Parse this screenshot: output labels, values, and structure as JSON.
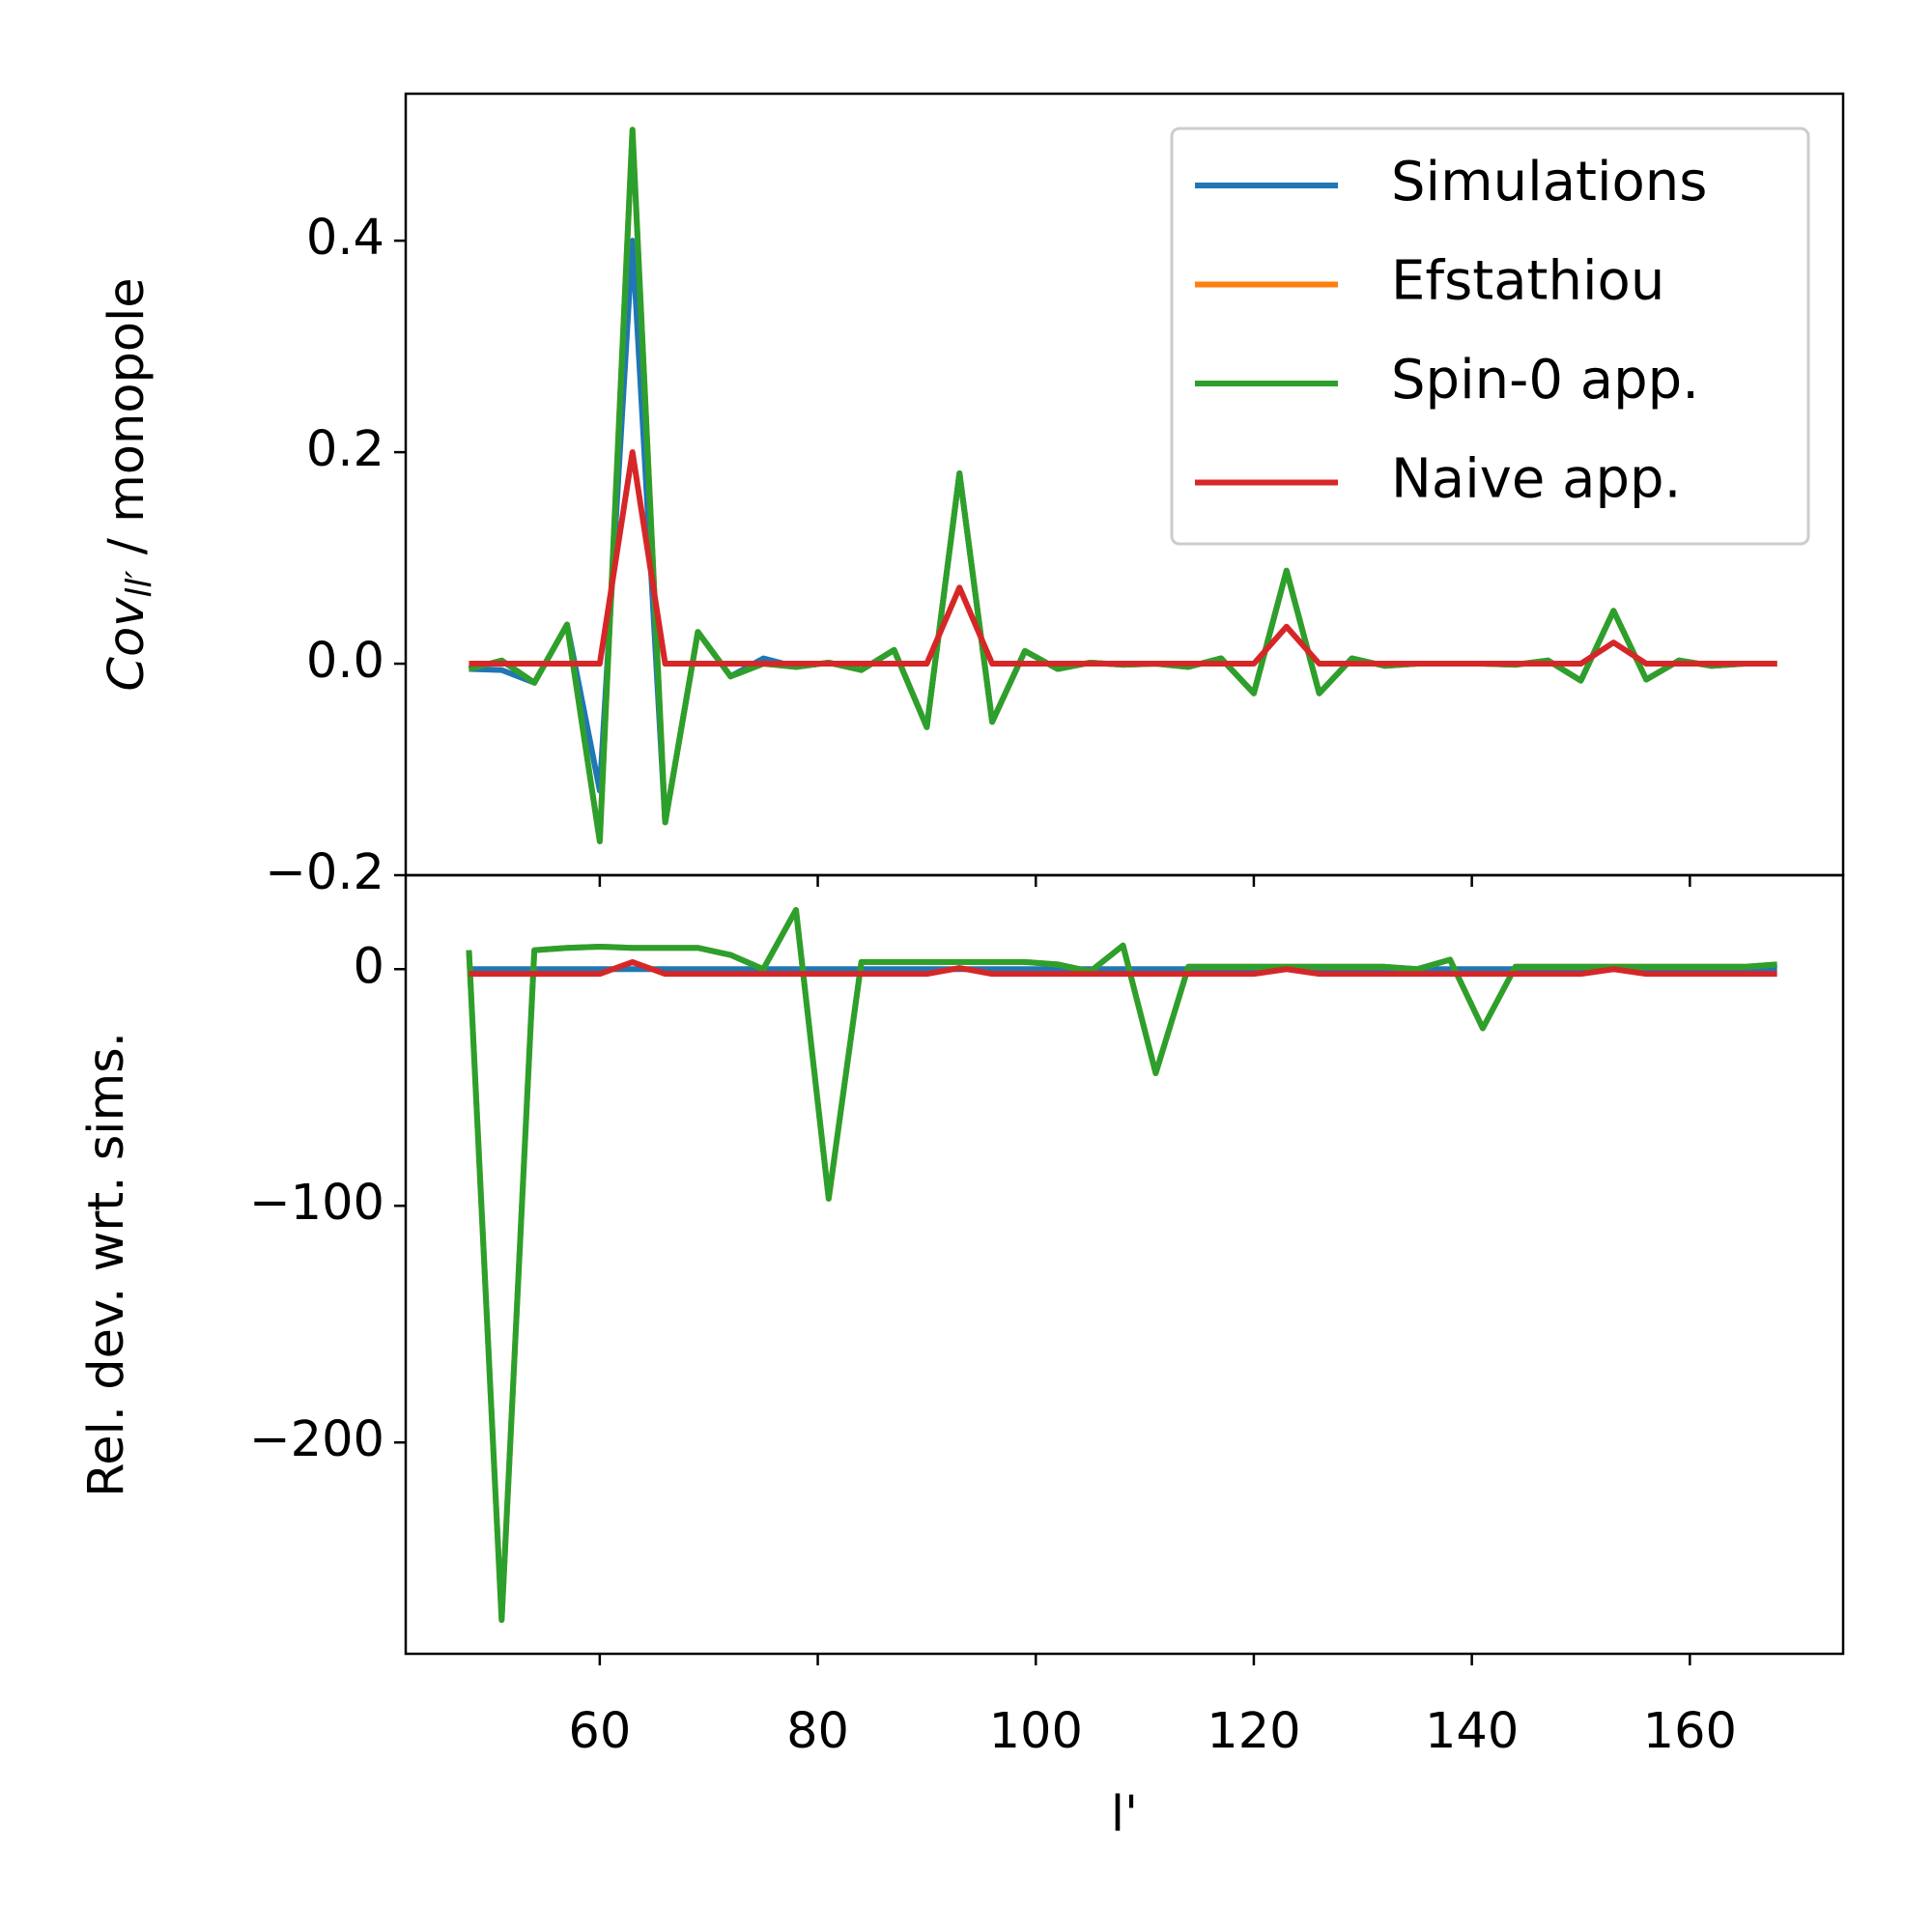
{
  "chart_data": [
    {
      "type": "line",
      "ylabel": {
        "main": "Cov",
        "sub": "ll′",
        "rest": " / monopole"
      },
      "x": [
        48,
        51,
        54,
        57,
        60,
        63,
        66,
        69,
        72,
        75,
        78,
        81,
        84,
        87,
        90,
        93,
        96,
        99,
        102,
        105,
        108,
        111,
        114,
        117,
        120,
        123,
        126,
        129,
        132,
        135,
        138,
        141,
        144,
        147,
        150,
        153,
        156,
        159,
        162,
        165,
        168
      ],
      "xlim": [
        42.2,
        174.06
      ],
      "xticks": [
        60,
        80,
        100,
        120,
        140,
        160
      ],
      "ylim": [
        -0.2,
        0.539
      ],
      "yticks": [
        {
          "value": -0.2,
          "label": "−0.2"
        },
        {
          "value": 0,
          "label": "0.0"
        },
        0.2,
        0.4
      ],
      "legend": "upper right",
      "series": [
        {
          "name": "Simulations",
          "color": "#1f77b4",
          "values": [
            -0.005,
            -0.006,
            -0.018,
            0.037,
            -0.12,
            0.4,
            -0.15,
            0.03,
            -0.012,
            0.005,
            -0.003,
            0.001,
            -0.006,
            0.013,
            -0.06,
            0.18,
            -0.055,
            0.012,
            -0.005,
            0.001,
            -0.001,
            0,
            -0.003,
            0.005,
            -0.028,
            0.088,
            -0.028,
            0.005,
            -0.002,
            0,
            0,
            0,
            -0.001,
            0.003,
            -0.016,
            0.05,
            -0.015,
            0.003,
            -0.002,
            0,
            0
          ]
        },
        {
          "name": "Efstathiou",
          "color": "#ff7f0e",
          "values": [
            -0.005,
            0.003,
            -0.018,
            0.037,
            -0.168,
            0.505,
            -0.15,
            0.03,
            -0.012,
            0,
            -0.003,
            0.001,
            -0.006,
            0.013,
            -0.06,
            0.18,
            -0.055,
            0.012,
            -0.005,
            0.001,
            -0.001,
            0,
            -0.003,
            0.005,
            -0.028,
            0.088,
            -0.028,
            0.005,
            -0.002,
            0,
            0,
            0,
            -0.001,
            0.003,
            -0.016,
            0.05,
            -0.015,
            0.003,
            -0.002,
            0,
            0
          ]
        },
        {
          "name": "Spin-0 app.",
          "color": "#2ca02c",
          "values": [
            -0.005,
            0.003,
            -0.018,
            0.037,
            -0.168,
            0.505,
            -0.15,
            0.03,
            -0.012,
            0,
            -0.003,
            0.001,
            -0.006,
            0.013,
            -0.06,
            0.18,
            -0.055,
            0.012,
            -0.005,
            0.001,
            -0.001,
            0,
            -0.003,
            0.005,
            -0.028,
            0.088,
            -0.028,
            0.005,
            -0.002,
            0,
            0,
            0,
            -0.001,
            0.003,
            -0.016,
            0.05,
            -0.015,
            0.003,
            -0.002,
            0,
            0
          ]
        },
        {
          "name": "Naive app.",
          "color": "#d62728",
          "values": [
            0,
            0,
            0,
            0,
            0,
            0.2,
            0,
            0,
            0,
            0,
            0,
            0,
            0,
            0,
            0,
            0.072,
            0,
            0,
            0,
            0,
            0,
            0,
            0,
            0,
            0,
            0.035,
            0,
            0,
            0,
            0,
            0,
            0,
            0,
            0,
            0,
            0.02,
            0,
            0,
            0,
            0,
            0
          ]
        }
      ]
    },
    {
      "type": "line",
      "ylabel": "Rel. dev. wrt. sims.",
      "xlabel": "l'",
      "x": [
        48,
        51,
        54,
        57,
        60,
        63,
        66,
        69,
        72,
        75,
        78,
        81,
        84,
        87,
        90,
        93,
        96,
        99,
        102,
        105,
        108,
        111,
        114,
        117,
        120,
        123,
        126,
        129,
        132,
        135,
        138,
        141,
        144,
        147,
        150,
        153,
        156,
        159,
        162,
        165,
        168
      ],
      "xlim": [
        42.2,
        174.06
      ],
      "xticks": [
        60,
        80,
        100,
        120,
        140,
        160
      ],
      "ylim": [
        -289.3,
        39.7
      ],
      "yticks": [
        {
          "value": -200,
          "label": "−200"
        },
        {
          "value": -100,
          "label": "−100"
        },
        0
      ],
      "series": [
        {
          "name": "Simulations",
          "color": "#1f77b4",
          "values": [
            0,
            0,
            0,
            0,
            0,
            0,
            0,
            0,
            0,
            0,
            0,
            0,
            0,
            0,
            0,
            0,
            0,
            0,
            0,
            0,
            0,
            0,
            0,
            0,
            0,
            0,
            0,
            0,
            0,
            0,
            0,
            0,
            0,
            0,
            0,
            0,
            0,
            0,
            0,
            0,
            0
          ]
        },
        {
          "name": "Efstathiou",
          "color": "#ff7f0e",
          "values": [
            8,
            -275,
            8,
            9,
            9.5,
            9,
            9,
            9,
            6,
            0,
            25,
            -97,
            3,
            3,
            3,
            3,
            3,
            3,
            2,
            -1,
            10,
            -44,
            1,
            1,
            1,
            1,
            1,
            1,
            1,
            0,
            4,
            -25,
            1,
            1,
            1,
            1,
            1,
            1,
            1,
            1,
            2
          ]
        },
        {
          "name": "Spin-0 app.",
          "color": "#2ca02c",
          "values": [
            8,
            -275,
            8,
            9,
            9.5,
            9,
            9,
            9,
            6,
            0,
            25,
            -97,
            3,
            3,
            3,
            3,
            3,
            3,
            2,
            -1,
            10,
            -44,
            1,
            1,
            1,
            1,
            1,
            1,
            1,
            0,
            4,
            -25,
            1,
            1,
            1,
            1,
            1,
            1,
            1,
            1,
            2
          ]
        },
        {
          "name": "Naive app.",
          "color": "#d62728",
          "values": [
            -2,
            -2,
            -2,
            -2,
            -2,
            3,
            -2,
            -2,
            -2,
            -2,
            -2,
            -2,
            -2,
            -2,
            -2,
            0.5,
            -2,
            -2,
            -2,
            -2,
            -2,
            -2,
            -2,
            -2,
            -2,
            0,
            -2,
            -2,
            -2,
            -2,
            -2,
            -2,
            -2,
            -2,
            -2,
            0,
            -2,
            -2,
            -2,
            -2,
            -2
          ]
        }
      ]
    }
  ]
}
